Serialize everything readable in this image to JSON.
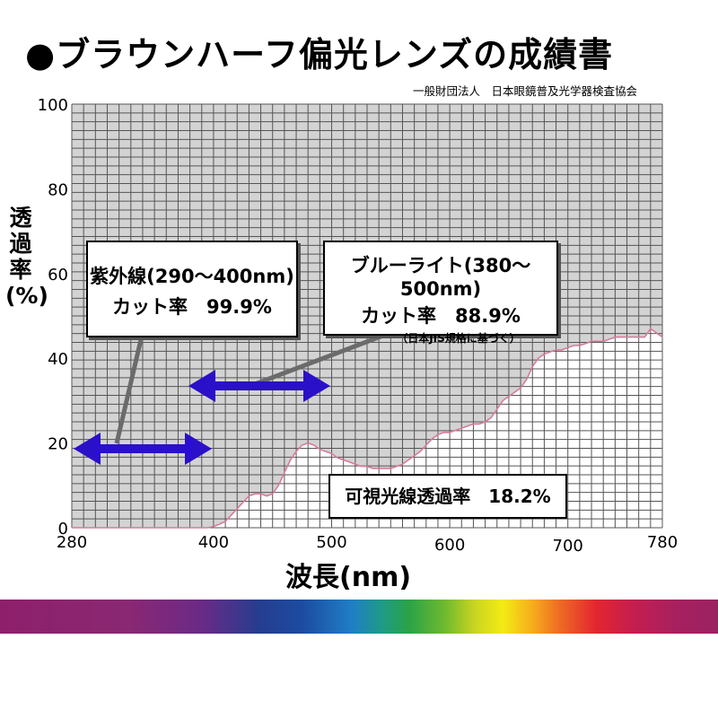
{
  "heading": "●ブラウンハーフ偏光レンズの成績書",
  "organization": "一般財団法人　日本眼鏡普及光学器検査協会",
  "colors": {
    "blocked_area": "#d3d3d3",
    "grid": "#555555",
    "curve": "#d87a9a",
    "arrow": "#2a10c8",
    "pointer": "#6b6b6b"
  },
  "callouts": {
    "uv": {
      "line1": "紫外線(290～400nm)",
      "line2": "カット率　99.9%"
    },
    "blue": {
      "line1": "ブルーライト(380～500nm)",
      "line2": "カット率　88.9%",
      "note": "（日本JIS規格に基づく）"
    },
    "visible": {
      "text": "可視光線透過率　18.2%"
    }
  },
  "chart_data": {
    "type": "area",
    "xlabel": "波長(nm)",
    "ylabel": "透過率(%)",
    "xlim": [
      280,
      780
    ],
    "ylim": [
      0,
      100
    ],
    "xticks": [
      280,
      400,
      500,
      600,
      700,
      780
    ],
    "yticks": [
      0,
      20,
      40,
      60,
      80,
      100
    ],
    "grid": true,
    "series": [
      {
        "x": [
          280,
          395,
          400,
          405,
          410,
          415,
          420,
          425,
          430,
          435,
          440,
          445,
          450,
          455,
          460,
          465,
          470,
          475,
          480,
          485,
          490,
          495,
          500,
          505,
          510,
          515,
          520,
          525,
          530,
          535,
          540,
          545,
          550,
          555,
          560,
          565,
          570,
          575,
          580,
          585,
          590,
          595,
          600,
          605,
          610,
          615,
          620,
          625,
          630,
          635,
          640,
          645,
          650,
          655,
          660,
          665,
          670,
          675,
          680,
          685,
          690,
          695,
          700,
          705,
          710,
          715,
          720,
          725,
          730,
          735,
          740,
          745,
          750,
          755,
          760,
          765,
          770,
          775,
          780
        ],
        "y": [
          0,
          0,
          0.3,
          0.8,
          1.5,
          3,
          4.5,
          6,
          7.5,
          8,
          8,
          7.5,
          8,
          10,
          13,
          16,
          18,
          19.5,
          20,
          19.5,
          18.5,
          18,
          17.5,
          16.5,
          16,
          15.5,
          15,
          14.5,
          14.5,
          14,
          14,
          14,
          14,
          14.5,
          15,
          16,
          17,
          18,
          19.5,
          21,
          22,
          22.5,
          22.5,
          23,
          23.5,
          24,
          24.5,
          24.5,
          25,
          26,
          28,
          30,
          31,
          32,
          33,
          35,
          38,
          40,
          41,
          41.5,
          42,
          42,
          42.5,
          43,
          43,
          43.5,
          44,
          44,
          44,
          44.5,
          45,
          45,
          45,
          45,
          45,
          45,
          47,
          46,
          45
        ]
      }
    ]
  }
}
